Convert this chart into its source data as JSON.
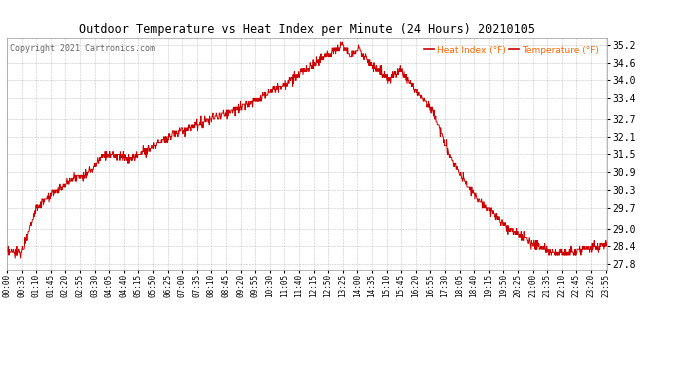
{
  "title": "Outdoor Temperature vs Heat Index per Minute (24 Hours) 20210105",
  "copyright": "Copyright 2021 Cartronics.com",
  "legend_heat": "Heat Index (°F)",
  "legend_temp": "Temperature (°F)",
  "y_ticks": [
    27.8,
    28.4,
    29.0,
    29.7,
    30.3,
    30.9,
    31.5,
    32.1,
    32.7,
    33.4,
    34.0,
    34.6,
    35.2
  ],
  "ylim": [
    27.6,
    35.45
  ],
  "line_color": "#cc0000",
  "bg_color": "#ffffff",
  "grid_color": "#aaaaaa",
  "title_color": "#000000",
  "legend_color": "#ff6600",
  "copyright_color": "#666666",
  "figsize": [
    6.9,
    3.75
  ],
  "dpi": 100
}
